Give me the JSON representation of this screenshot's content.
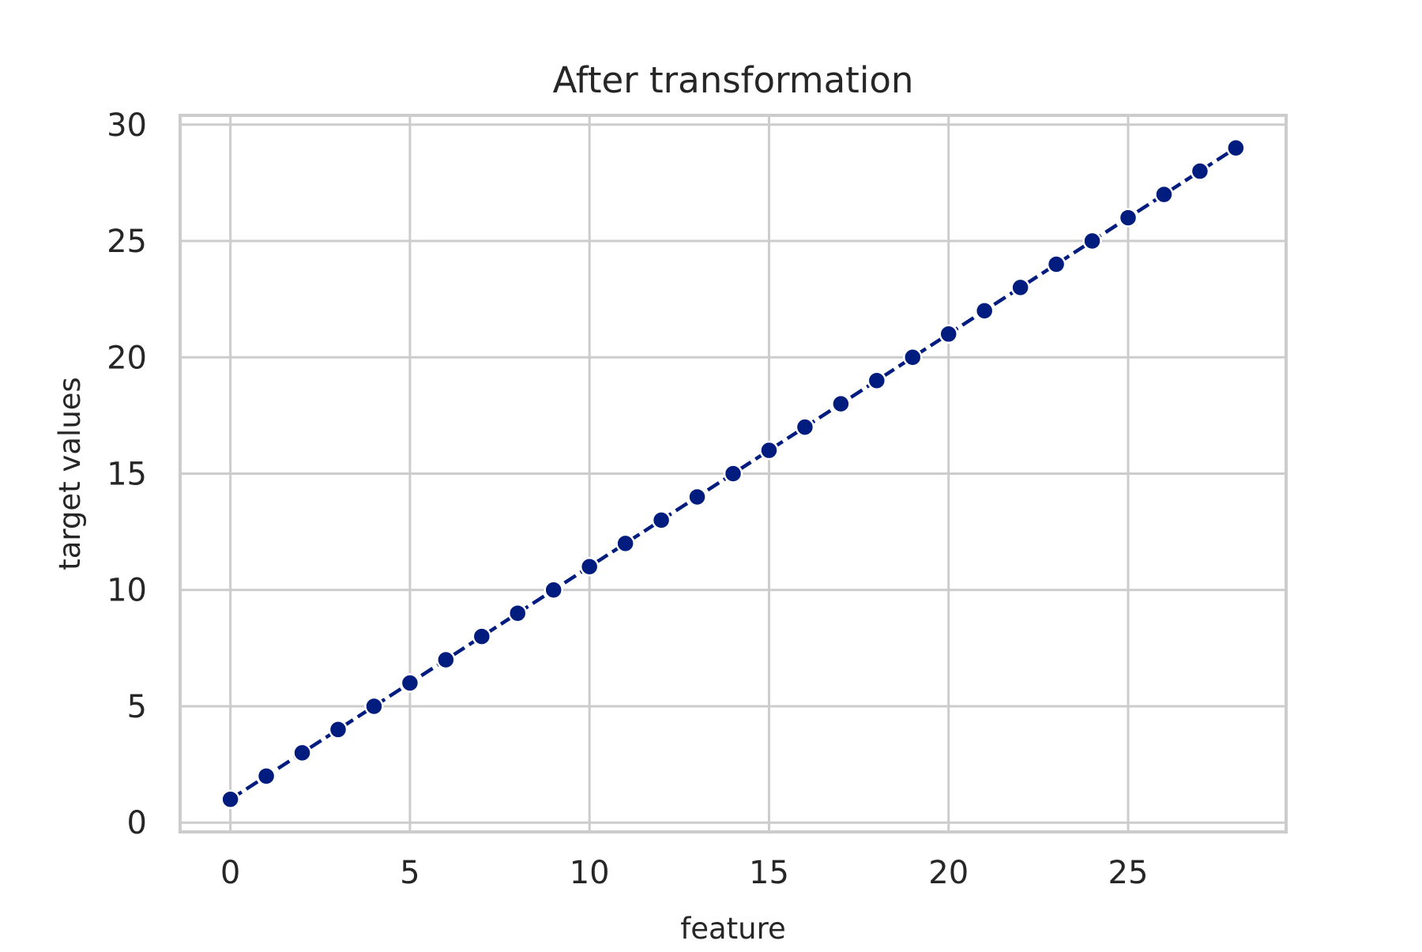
{
  "chart_data": {
    "type": "line",
    "title": "After transformation",
    "xlabel": "feature",
    "ylabel": "target values",
    "xlim": [
      -1.4,
      29.4
    ],
    "ylim": [
      -0.4,
      30.4
    ],
    "xticks": [
      0,
      5,
      10,
      15,
      20,
      25
    ],
    "yticks": [
      0,
      5,
      10,
      15,
      20,
      25,
      30
    ],
    "grid": true,
    "series": [
      {
        "x": [
          0,
          1,
          2,
          3,
          4,
          5,
          6,
          7,
          8,
          9,
          10,
          11,
          12,
          13,
          14,
          15,
          16,
          17,
          18,
          19,
          20,
          21,
          22,
          23,
          24,
          25,
          26,
          27,
          28
        ],
        "values": [
          1,
          2,
          3,
          4,
          5,
          6,
          7,
          8,
          9,
          10,
          11,
          12,
          13,
          14,
          15,
          16,
          17,
          18,
          19,
          20,
          21,
          22,
          23,
          24,
          25,
          26,
          27,
          28,
          29
        ],
        "color": "#001c7f",
        "line_style": "dashed",
        "marker": "circle"
      }
    ]
  },
  "colors": {
    "grid": "#cccccc",
    "frame": "#cccccc",
    "text": "#262626",
    "background": "#ffffff"
  }
}
